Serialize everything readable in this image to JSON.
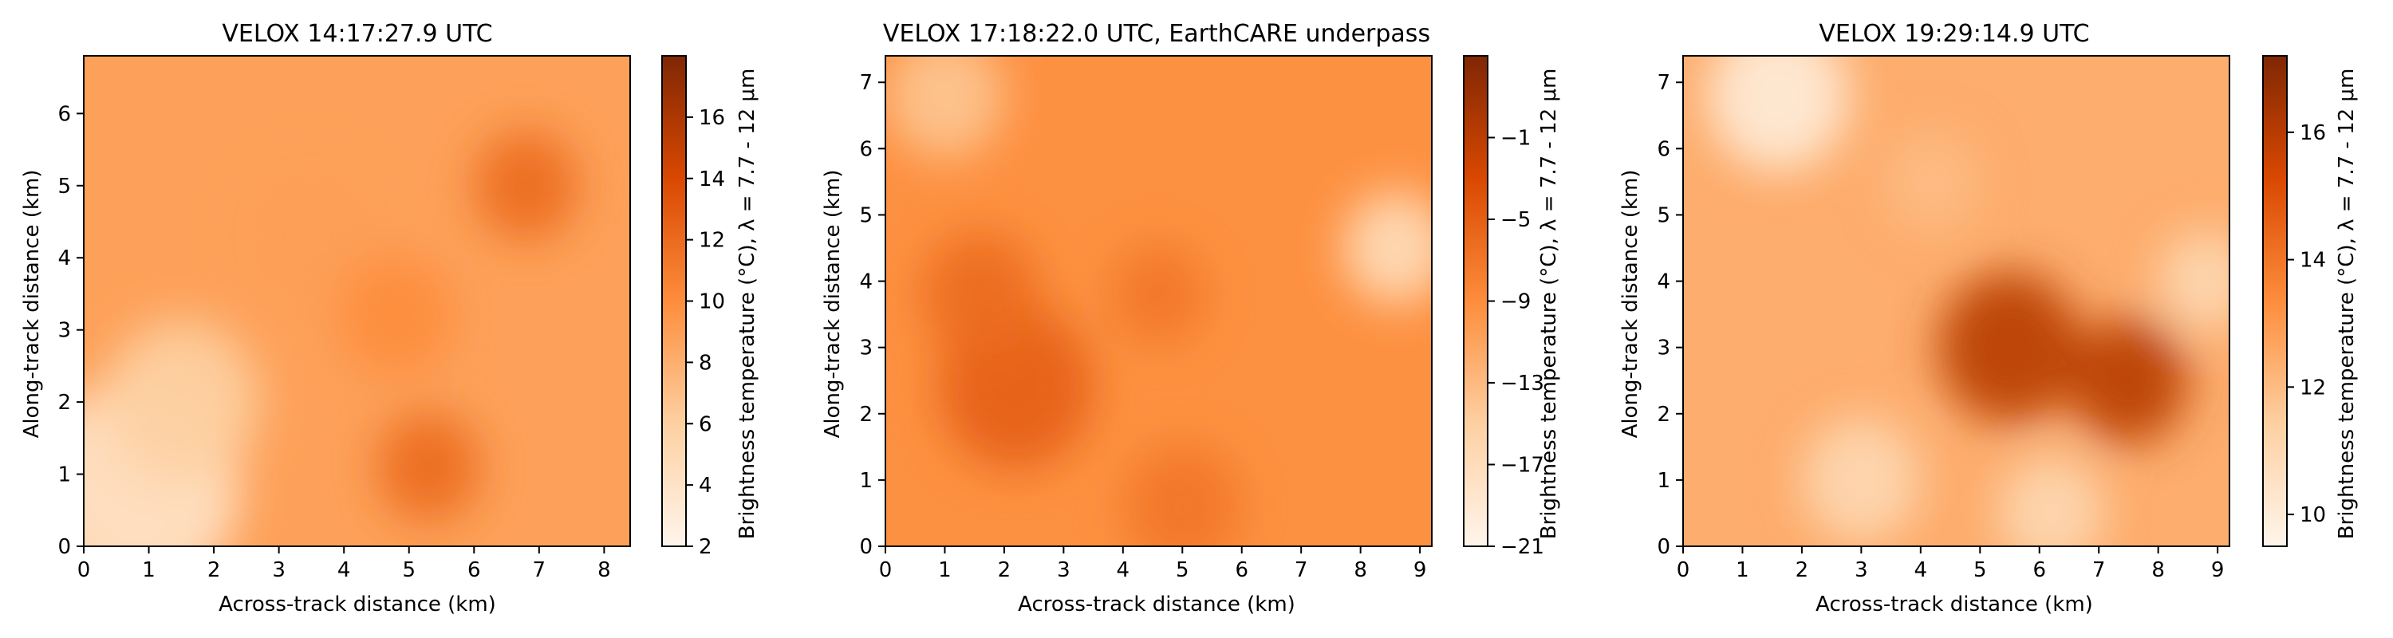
{
  "chart_data": [
    {
      "type": "heatmap",
      "title": "VELOX 14:17:27.9 UTC",
      "xlabel": "Across-track distance (km)",
      "ylabel": "Along-track distance (km)",
      "xlim": [
        0,
        8.4
      ],
      "ylim": [
        0,
        6.8
      ],
      "xticks": [
        0,
        1,
        2,
        3,
        4,
        5,
        6,
        7,
        8
      ],
      "yticks": [
        0,
        1,
        2,
        3,
        4,
        5,
        6
      ],
      "colorbar": {
        "label": "Brightness temperature (°C), λ = 7.7 - 12 μm",
        "range": [
          2,
          18
        ],
        "ticks": [
          2,
          4,
          6,
          8,
          10,
          12,
          14,
          16
        ]
      },
      "colormap": [
        "#fff5eb",
        "#fdd0a2",
        "#fd8d3c",
        "#d94801",
        "#7f2704"
      ],
      "pattern": "warm dark orange across most of scene with bright cool cloud features in lower-left and center-left",
      "highlights": [
        {
          "x": 0.8,
          "y": 0.8,
          "r": 1.6,
          "value": 4
        },
        {
          "x": 1.5,
          "y": 2.0,
          "r": 1.2,
          "value": 6
        },
        {
          "x": 3.5,
          "y": 4.3,
          "r": 1.1,
          "value": 9
        },
        {
          "x": 4.8,
          "y": 3.2,
          "r": 0.9,
          "value": 10
        },
        {
          "x": 5.3,
          "y": 1.1,
          "r": 0.8,
          "value": 12
        },
        {
          "x": 6.8,
          "y": 5.0,
          "r": 0.8,
          "value": 12
        }
      ]
    },
    {
      "type": "heatmap",
      "title": "VELOX 17:18:22.0 UTC, EarthCARE underpass",
      "xlabel": "Across-track distance (km)",
      "ylabel": "Along-track distance (km)",
      "xlim": [
        0,
        9.2
      ],
      "ylim": [
        0,
        7.4
      ],
      "xticks": [
        0,
        1,
        2,
        3,
        4,
        5,
        6,
        7,
        8,
        9
      ],
      "yticks": [
        0,
        1,
        2,
        3,
        4,
        5,
        6,
        7
      ],
      "colorbar": {
        "label": "Brightness temperature (°C), λ = 7.7 - 12 μm",
        "range": [
          -21,
          3
        ],
        "ticks": [
          -21,
          -17,
          -13,
          -9,
          -5,
          -1
        ]
      },
      "colormap": [
        "#fff5eb",
        "#fdd0a2",
        "#fd8d3c",
        "#d94801",
        "#7f2704"
      ],
      "pattern": "mottled pale-to-mid orange thick cloud with darker warm patches on left-center and bottom",
      "highlights": [
        {
          "x": 2.2,
          "y": 2.4,
          "r": 1.3,
          "value": -5
        },
        {
          "x": 1.6,
          "y": 3.8,
          "r": 1.0,
          "value": -6
        },
        {
          "x": 4.6,
          "y": 3.8,
          "r": 0.8,
          "value": -7
        },
        {
          "x": 5.0,
          "y": 0.6,
          "r": 1.0,
          "value": -7
        },
        {
          "x": 8.6,
          "y": 4.5,
          "r": 0.9,
          "value": -17
        },
        {
          "x": 1.0,
          "y": 6.8,
          "r": 1.0,
          "value": -14
        }
      ]
    },
    {
      "type": "heatmap",
      "title": "VELOX 19:29:14.9 UTC",
      "xlabel": "Across-track distance (km)",
      "ylabel": "Along-track distance (km)",
      "xlim": [
        0,
        9.2
      ],
      "ylim": [
        0,
        7.4
      ],
      "xticks": [
        0,
        1,
        2,
        3,
        4,
        5,
        6,
        7,
        8,
        9
      ],
      "yticks": [
        0,
        1,
        2,
        3,
        4,
        5,
        6,
        7
      ],
      "colorbar": {
        "label": "Brightness temperature (°C), λ = 7.7 - 12 μm",
        "range": [
          9.5,
          17.2
        ],
        "ticks": [
          10,
          12,
          14,
          16
        ]
      },
      "colormap": [
        "#fff5eb",
        "#fdd0a2",
        "#fd8d3c",
        "#d94801",
        "#7f2704"
      ],
      "pattern": "dark warm band through center and right with pale cool cloud patches at top-left, bottom and right edge",
      "highlights": [
        {
          "x": 1.6,
          "y": 6.8,
          "r": 1.2,
          "value": 10
        },
        {
          "x": 3.0,
          "y": 1.0,
          "r": 1.0,
          "value": 11
        },
        {
          "x": 6.2,
          "y": 0.5,
          "r": 0.9,
          "value": 11
        },
        {
          "x": 8.8,
          "y": 4.0,
          "r": 0.8,
          "value": 11
        },
        {
          "x": 4.2,
          "y": 5.5,
          "r": 0.8,
          "value": 12
        },
        {
          "x": 5.5,
          "y": 3.0,
          "r": 1.2,
          "value": 16
        },
        {
          "x": 7.5,
          "y": 2.5,
          "r": 1.0,
          "value": 16
        }
      ]
    }
  ]
}
